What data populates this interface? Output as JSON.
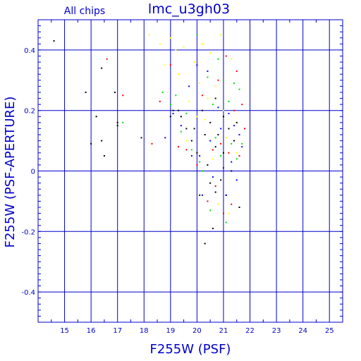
{
  "chart_data": {
    "type": "scatter",
    "title": "lmc_u3gh03",
    "subtitle": "All chips",
    "xlabel": "F255W (PSF)",
    "ylabel": "F255W (PSF-APERTURE)",
    "xlim": [
      14,
      25.5
    ],
    "ylim": [
      -0.5,
      0.5
    ],
    "xticks": [
      "15",
      "16",
      "17",
      "18",
      "19",
      "20",
      "21",
      "22",
      "23",
      "24",
      "25"
    ],
    "yticks": [
      "0.4",
      "0.2",
      "0",
      "-0.2",
      "-0.4"
    ],
    "grid": true,
    "colors": {
      "axis": "#0000cc",
      "black": "#000000",
      "red": "#ff0000",
      "green": "#00e000",
      "blue": "#0000ff",
      "yellow": "#ffff00"
    },
    "series": [
      {
        "color": "black",
        "points": [
          [
            14.6,
            0.43
          ],
          [
            15.8,
            0.26
          ],
          [
            16.0,
            0.09
          ],
          [
            16.2,
            0.18
          ],
          [
            16.4,
            0.1
          ],
          [
            16.4,
            0.34
          ],
          [
            16.5,
            0.05
          ],
          [
            16.9,
            0.26
          ],
          [
            17.0,
            0.16
          ],
          [
            17.0,
            0.15
          ],
          [
            17.9,
            0.11
          ],
          [
            19.0,
            0.18
          ],
          [
            19.1,
            0.2
          ],
          [
            19.3,
            0.2
          ],
          [
            19.4,
            0.18
          ],
          [
            19.6,
            0.14
          ],
          [
            19.8,
            0.1
          ],
          [
            19.9,
            0.14
          ],
          [
            20.0,
            0.06
          ],
          [
            20.1,
            -0.08
          ],
          [
            20.2,
            0.2
          ],
          [
            20.3,
            0.12
          ],
          [
            20.3,
            -0.24
          ],
          [
            20.4,
            0.02
          ],
          [
            20.5,
            0.16
          ],
          [
            20.5,
            -0.04
          ],
          [
            20.6,
            -0.19
          ],
          [
            20.7,
            0.24
          ],
          [
            20.7,
            0.08
          ],
          [
            20.7,
            -0.07
          ],
          [
            20.8,
            0.12
          ],
          [
            20.9,
            -0.03
          ],
          [
            21.0,
            0.18
          ],
          [
            21.0,
            0.06
          ],
          [
            21.1,
            -0.08
          ],
          [
            21.2,
            0.14
          ],
          [
            21.3,
            0.0
          ],
          [
            21.4,
            0.1
          ],
          [
            21.5,
            0.16
          ],
          [
            21.6,
            -0.12
          ]
        ]
      },
      {
        "color": "red",
        "points": [
          [
            16.6,
            0.37
          ],
          [
            17.2,
            0.25
          ],
          [
            18.3,
            0.09
          ],
          [
            18.6,
            0.23
          ],
          [
            19.0,
            0.35
          ],
          [
            19.3,
            0.08
          ],
          [
            19.6,
            0.07
          ],
          [
            20.0,
            0.02
          ],
          [
            20.2,
            0.25
          ],
          [
            20.4,
            -0.1
          ],
          [
            20.6,
            0.07
          ],
          [
            20.7,
            -0.05
          ],
          [
            20.8,
            0.3
          ],
          [
            20.9,
            0.09
          ],
          [
            21.0,
            -0.14
          ],
          [
            21.1,
            0.38
          ],
          [
            21.2,
            0.06
          ],
          [
            21.3,
            -0.11
          ],
          [
            21.4,
            0.2
          ],
          [
            21.5,
            0.33
          ],
          [
            21.6,
            0.05
          ],
          [
            21.7,
            0.22
          ],
          [
            21.8,
            0.14
          ]
        ]
      },
      {
        "color": "green",
        "points": [
          [
            17.2,
            0.16
          ],
          [
            18.7,
            0.26
          ],
          [
            19.0,
            0.22
          ],
          [
            19.2,
            0.25
          ],
          [
            19.4,
            0.13
          ],
          [
            19.6,
            0.19
          ],
          [
            19.8,
            0.07
          ],
          [
            20.0,
            0.45
          ],
          [
            20.1,
            0.03
          ],
          [
            20.2,
            0.0
          ],
          [
            20.4,
            0.31
          ],
          [
            20.5,
            -0.13
          ],
          [
            20.6,
            0.22
          ],
          [
            20.7,
            0.11
          ],
          [
            20.8,
            0.37
          ],
          [
            20.9,
            0.05
          ],
          [
            21.0,
            0.3
          ],
          [
            21.1,
            -0.17
          ],
          [
            21.2,
            0.23
          ],
          [
            21.3,
            0.09
          ],
          [
            21.4,
            0.29
          ],
          [
            21.5,
            0.04
          ],
          [
            21.6,
            0.27
          ],
          [
            21.7,
            0.09
          ]
        ]
      },
      {
        "color": "blue",
        "points": [
          [
            18.8,
            0.11
          ],
          [
            19.1,
            0.19
          ],
          [
            19.4,
            0.15
          ],
          [
            19.7,
            0.28
          ],
          [
            19.8,
            0.05
          ],
          [
            20.0,
            0.35
          ],
          [
            20.1,
            0.05
          ],
          [
            20.2,
            -0.08
          ],
          [
            20.4,
            0.33
          ],
          [
            20.5,
            0.1
          ],
          [
            20.6,
            -0.02
          ],
          [
            20.8,
            0.21
          ],
          [
            20.9,
            0.14
          ],
          [
            21.0,
            0.01
          ],
          [
            21.1,
            -0.08
          ],
          [
            21.2,
            0.19
          ],
          [
            21.3,
            0.03
          ],
          [
            21.4,
            0.15
          ],
          [
            21.5,
            -0.03
          ],
          [
            21.6,
            0.12
          ],
          [
            21.7,
            0.08
          ]
        ]
      },
      {
        "color": "yellow",
        "points": [
          [
            18.2,
            0.45
          ],
          [
            18.6,
            0.42
          ],
          [
            18.8,
            0.35
          ],
          [
            19.0,
            0.44
          ],
          [
            19.2,
            0.4
          ],
          [
            19.3,
            0.32
          ],
          [
            19.5,
            0.41
          ],
          [
            19.6,
            0.1
          ],
          [
            19.7,
            0.23
          ],
          [
            19.9,
            0.36
          ],
          [
            20.0,
            0.18
          ],
          [
            20.1,
            0.29
          ],
          [
            20.2,
            0.42
          ],
          [
            20.3,
            0.17
          ],
          [
            20.4,
            0.24
          ],
          [
            20.5,
            0.39
          ],
          [
            20.6,
            0.04
          ],
          [
            20.7,
            0.28
          ],
          [
            20.8,
            -0.11
          ],
          [
            20.9,
            0.45
          ],
          [
            21.0,
            0.2
          ],
          [
            21.1,
            0.11
          ],
          [
            21.2,
            -0.14
          ],
          [
            21.3,
            0.37
          ],
          [
            21.5,
            0.06
          ]
        ]
      }
    ]
  }
}
